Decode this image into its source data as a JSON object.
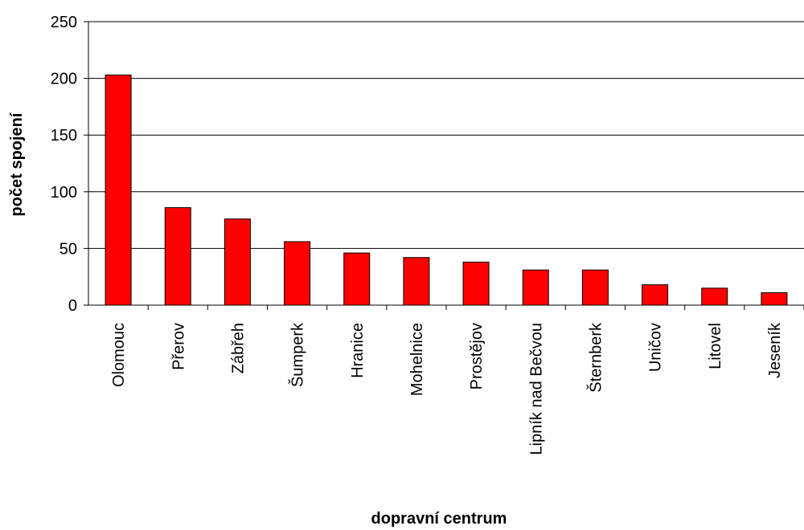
{
  "chart_data": {
    "type": "bar",
    "title": "",
    "xlabel": "dopravní centrum",
    "ylabel": "počet spojení",
    "categories": [
      "Olomouc",
      "Přerov",
      "Zábřeh",
      "Šumperk",
      "Hranice",
      "Mohelnice",
      "Prostějov",
      "Lipník nad Bečvou",
      "Šternberk",
      "Uničov",
      "Litovel",
      "Jeseník"
    ],
    "values": [
      203,
      86,
      76,
      56,
      46,
      42,
      38,
      31,
      31,
      18,
      15,
      11
    ],
    "ylim": [
      0,
      250
    ],
    "yticks": [
      0,
      50,
      100,
      150,
      200,
      250
    ],
    "grid": true,
    "legend": "none",
    "colors": {
      "bar": "#ff0000",
      "bar_stroke": "#000000",
      "grid": "#000000"
    }
  }
}
